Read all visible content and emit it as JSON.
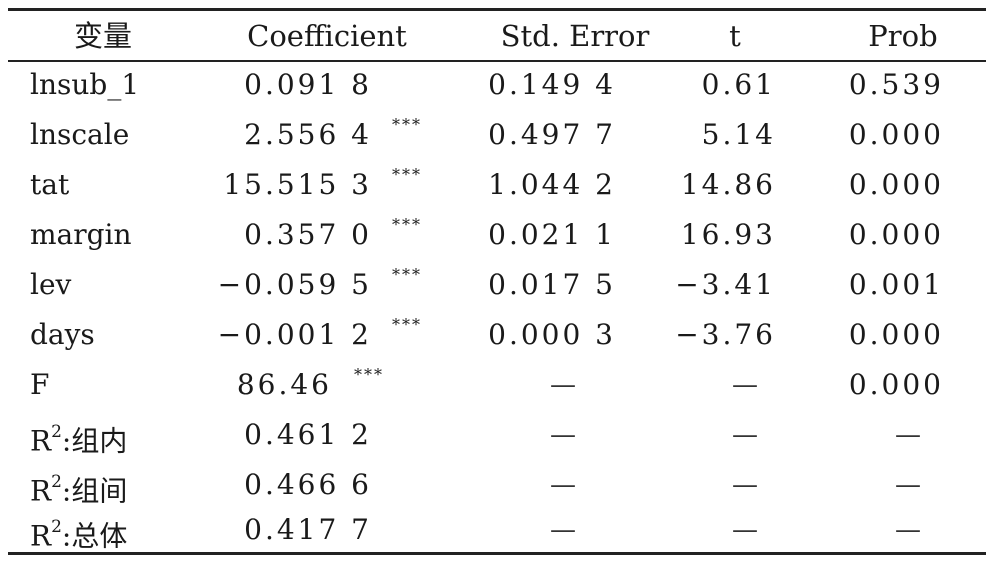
{
  "header": {
    "variable": "变量",
    "coefficient": "Coefficient",
    "std_error": "Std. Error",
    "t": "t",
    "prob": "Prob"
  },
  "rows": [
    {
      "var": "lnsub_1",
      "coef": "0.091 8",
      "stars": "",
      "se": "0.149 4",
      "t": "0.61",
      "prob": "0.539"
    },
    {
      "var": "lnscale",
      "coef": "2.556 4",
      "stars": "***",
      "se": "0.497 7",
      "t": "5.14",
      "prob": "0.000"
    },
    {
      "var": "tat",
      "coef": "15.515 3",
      "stars": "***",
      "se": "1.044 2",
      "t": "14.86",
      "prob": "0.000"
    },
    {
      "var": "margin",
      "coef": "0.357 0",
      "stars": "***",
      "se": "0.021 1",
      "t": "16.93",
      "prob": "0.000"
    },
    {
      "var": "lev",
      "coef": "−0.059 5",
      "stars": "***",
      "se": "0.017 5",
      "t": "−3.41",
      "prob": "0.001"
    },
    {
      "var": "days",
      "coef": "−0.001 2",
      "stars": "***",
      "se": "0.000 3",
      "t": "−3.76",
      "prob": "0.000"
    }
  ],
  "stats": [
    {
      "var": "F",
      "var_sup": "",
      "var_suffix": "",
      "coef": "86.46",
      "stars": "***",
      "se": "—",
      "t": "—",
      "prob": "0.000"
    },
    {
      "var": "R",
      "var_sup": "2",
      "var_suffix": ":组内",
      "coef": "0.461 2",
      "stars": "",
      "se": "—",
      "t": "—",
      "prob": "—"
    },
    {
      "var": "R",
      "var_sup": "2",
      "var_suffix": ":组间",
      "coef": "0.466 6",
      "stars": "",
      "se": "—",
      "t": "—",
      "prob": "—"
    },
    {
      "var": "R",
      "var_sup": "2",
      "var_suffix": ":总体",
      "coef": "0.417 7",
      "stars": "",
      "se": "—",
      "t": "—",
      "prob": "—"
    }
  ]
}
